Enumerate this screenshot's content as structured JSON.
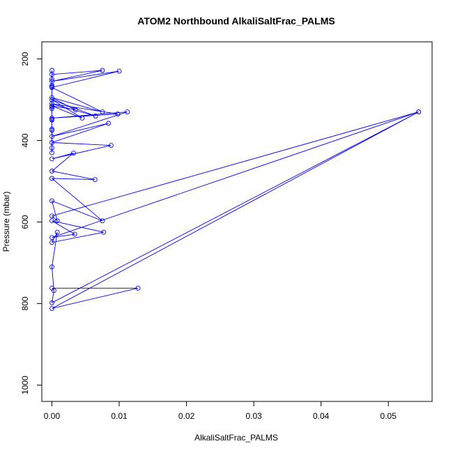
{
  "chart_data": {
    "type": "line",
    "title": "ATOM2 Northbound AlkaliSaltFrac_PALMS",
    "xlabel": "AlkaliSaltFrac_PALMS",
    "ylabel": "Pressure (mbar)",
    "xlim": [
      -0.0015,
      0.0565
    ],
    "ylim": [
      1040,
      158
    ],
    "y_inverted": true,
    "grid": false,
    "legend": "none",
    "color": "#0000ff",
    "x_ticks": [
      0,
      0.01,
      0.02,
      0.03,
      0.04,
      0.05
    ],
    "x_tick_labels": [
      "0.00",
      "0.01",
      "0.02",
      "0.03",
      "0.04",
      "0.05"
    ],
    "y_ticks": [
      200,
      400,
      600,
      800,
      1000
    ],
    "y_tick_labels": [
      "200",
      "400",
      "600",
      "800",
      "1000"
    ],
    "series": [
      {
        "x": [
          0.0,
          0.0128,
          0.0,
          0.0545,
          0.0,
          0.0003,
          0.0,
          0.0008,
          0.0,
          0.0077,
          0.0,
          0.0034,
          0.0,
          0.0545,
          0.0,
          0.0008,
          0.0,
          0.0075,
          0.0,
          0.0064,
          0.0,
          0.0032,
          0.0,
          0.0088,
          0.0,
          0.0084,
          0.0,
          0.0112,
          0.0,
          0.0098,
          0.0,
          0.0065,
          0.0,
          0.0045,
          0.0,
          0.0035,
          0.0,
          0.0075,
          0.0,
          0.01,
          0.0,
          0.0075,
          0.0,
          0.0,
          0.0,
          0.0,
          0.0,
          0.0,
          0.0,
          0.0,
          0.0,
          0.0,
          0.0,
          0.0,
          0.0
        ],
        "y": [
          762,
          762,
          812,
          330,
          798,
          768,
          710,
          625,
          650,
          625,
          597,
          630,
          638,
          330,
          585,
          597,
          548,
          597,
          493,
          496,
          475,
          431,
          445,
          412,
          405,
          358,
          390,
          330,
          345,
          335,
          310,
          340,
          300,
          345,
          315,
          325,
          295,
          330,
          270,
          230,
          255,
          228,
          238,
          228,
          250,
          268,
          265,
          322,
          318,
          350,
          348,
          372,
          375,
          418,
          430
        ]
      }
    ]
  }
}
